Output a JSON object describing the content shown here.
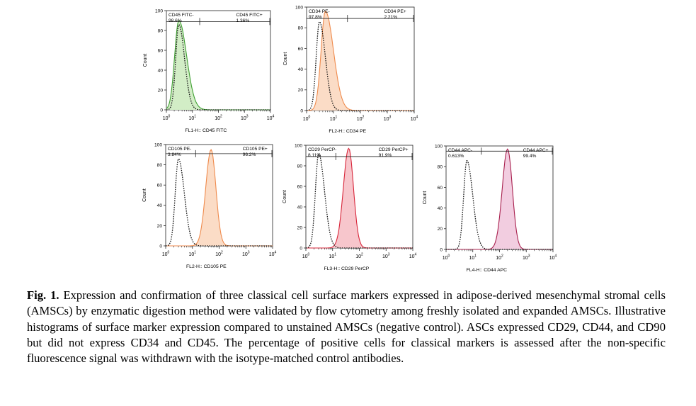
{
  "figure": {
    "panels": [
      {
        "id": "cd45",
        "ylabel": "Count",
        "xlabel": "FL1-H:: CD45 FITC",
        "yticks": [
          "0",
          "20",
          "40",
          "60",
          "80",
          "100"
        ],
        "xticks": [
          {
            "base": "10",
            "exp": "0"
          },
          {
            "base": "10",
            "exp": "1"
          },
          {
            "base": "10",
            "exp": "2"
          },
          {
            "base": "10",
            "exp": "3"
          },
          {
            "base": "10",
            "exp": "4"
          }
        ],
        "gate_neg": {
          "name": "CD45 FITC-",
          "pct": "98.6%"
        },
        "gate_pos": {
          "name": "CD45 FITC+",
          "pct": "1.36%"
        },
        "color": "#3f9f32",
        "fill": "#d2edc6"
      },
      {
        "id": "cd34",
        "ylabel": "Count",
        "xlabel": "FL2-H:: CD34 PE",
        "yticks": [
          "0",
          "20",
          "40",
          "60",
          "80",
          "100"
        ],
        "xticks": [
          {
            "base": "10",
            "exp": "0"
          },
          {
            "base": "10",
            "exp": "1"
          },
          {
            "base": "10",
            "exp": "2"
          },
          {
            "base": "10",
            "exp": "3"
          },
          {
            "base": "10",
            "exp": "4"
          }
        ],
        "gate_neg": {
          "name": "CD34 PE-",
          "pct": "97.8%"
        },
        "gate_pos": {
          "name": "CD34 PE+",
          "pct": "2.21%"
        },
        "color": "#ef8a4c",
        "fill": "#fbdcc6"
      },
      {
        "id": "cd105",
        "ylabel": "Count",
        "xlabel": "FL2-H:: CD105 PE",
        "yticks": [
          "0",
          "20",
          "40",
          "60",
          "80",
          "100"
        ],
        "xticks": [
          {
            "base": "10",
            "exp": "0"
          },
          {
            "base": "10",
            "exp": "1"
          },
          {
            "base": "10",
            "exp": "2"
          },
          {
            "base": "10",
            "exp": "3"
          },
          {
            "base": "10",
            "exp": "4"
          }
        ],
        "gate_neg": {
          "name": "CD105 PE-",
          "pct": "3.84%"
        },
        "gate_pos": {
          "name": "CD105 PE+",
          "pct": "96.2%"
        },
        "color": "#ef8a4c",
        "fill": "#fbdcc6"
      },
      {
        "id": "cd29",
        "ylabel": "Count",
        "xlabel": "FL3-H:: CD29 PerCP",
        "yticks": [
          "0",
          "20",
          "40",
          "60",
          "80",
          "100"
        ],
        "xticks": [
          {
            "base": "10",
            "exp": "0"
          },
          {
            "base": "10",
            "exp": "1"
          },
          {
            "base": "10",
            "exp": "2"
          },
          {
            "base": "10",
            "exp": "3"
          },
          {
            "base": "10",
            "exp": "4"
          }
        ],
        "gate_neg": {
          "name": "CD29 PerCP-",
          "pct": "8.11%"
        },
        "gate_pos": {
          "name": "CD29 PerCP+",
          "pct": "91.9%"
        },
        "color": "#d8263a",
        "fill": "#f7c6cc"
      },
      {
        "id": "cd44",
        "ylabel": "Count",
        "xlabel": "FL4-H:: CD44 APC",
        "yticks": [
          "0",
          "20",
          "40",
          "60",
          "80",
          "100"
        ],
        "xticks": [
          {
            "base": "10",
            "exp": "0"
          },
          {
            "base": "10",
            "exp": "1"
          },
          {
            "base": "10",
            "exp": "2"
          },
          {
            "base": "10",
            "exp": "3"
          },
          {
            "base": "10",
            "exp": "4"
          }
        ],
        "gate_neg": {
          "name": "CD44 APC-",
          "pct": "0.613%"
        },
        "gate_pos": {
          "name": "CD44 APC+",
          "pct": "99.4%"
        },
        "color": "#a8204e",
        "fill": "#f2cde0"
      }
    ]
  },
  "chart_data": [
    {
      "type": "area",
      "title": "",
      "xlabel": "FL1-H:: CD45 FITC",
      "ylabel": "Count",
      "x_scale": "log",
      "xlim": [
        1,
        10000
      ],
      "ylim": [
        0,
        100
      ],
      "series": [
        {
          "name": "",
          "style": "dotted",
          "peak_x": 3,
          "peak_y": 86
        },
        {
          "name": "",
          "style": "solid",
          "peak_x": 3,
          "peak_y": 90
        }
      ]
    },
    {
      "type": "area",
      "title": "",
      "xlabel": "FL2-H:: CD34 PE",
      "ylabel": "Count",
      "x_scale": "log",
      "xlim": [
        1,
        10000
      ],
      "ylim": [
        0,
        100
      ],
      "series": [
        {
          "name": "",
          "style": "dotted",
          "peak_x": 3,
          "peak_y": 86
        },
        {
          "name": "",
          "style": "solid",
          "peak_x": 5,
          "peak_y": 96
        }
      ]
    },
    {
      "type": "area",
      "title": "",
      "xlabel": "FL2-H:: CD105 PE",
      "ylabel": "Count",
      "x_scale": "log",
      "xlim": [
        1,
        10000
      ],
      "ylim": [
        0,
        100
      ],
      "series": [
        {
          "name": "",
          "style": "dotted",
          "peak_x": 3,
          "peak_y": 86
        },
        {
          "name": "",
          "style": "solid",
          "peak_x": 50,
          "peak_y": 95
        }
      ]
    },
    {
      "type": "area",
      "title": "",
      "xlabel": "FL3-H:: CD29 PerCP",
      "ylabel": "Count",
      "x_scale": "log",
      "xlim": [
        1,
        10000
      ],
      "ylim": [
        0,
        100
      ],
      "series": [
        {
          "name": "",
          "style": "dotted",
          "peak_x": 3,
          "peak_y": 92
        },
        {
          "name": "",
          "style": "solid",
          "peak_x": 40,
          "peak_y": 97
        }
      ]
    },
    {
      "type": "area",
      "title": "",
      "xlabel": "FL4-H:: CD44 APC",
      "ylabel": "Count",
      "x_scale": "log",
      "xlim": [
        1,
        10000
      ],
      "ylim": [
        0,
        100
      ],
      "series": [
        {
          "name": "",
          "style": "dotted",
          "peak_x": 6,
          "peak_y": 86
        },
        {
          "name": "",
          "style": "solid",
          "peak_x": 200,
          "peak_y": 97
        }
      ]
    }
  ],
  "caption": {
    "label": "Fig. 1.",
    "text": " Expression and confirmation of three classical cell surface markers expressed in adipose-derived mesenchymal stromal cells (AMSCs) by enzymatic digestion method were validated by flow cytometry among freshly isolated and expanded AMSCs. Illustrative histograms of surface marker expression compared to unstained AMSCs (negative control). ASCs expressed CD29, CD44, and CD90 but did not express CD34 and CD45. The percentage of positive cells for classical markers is assessed after the non-specific fluorescence signal was withdrawn with the isotype-matched control antibodies."
  }
}
